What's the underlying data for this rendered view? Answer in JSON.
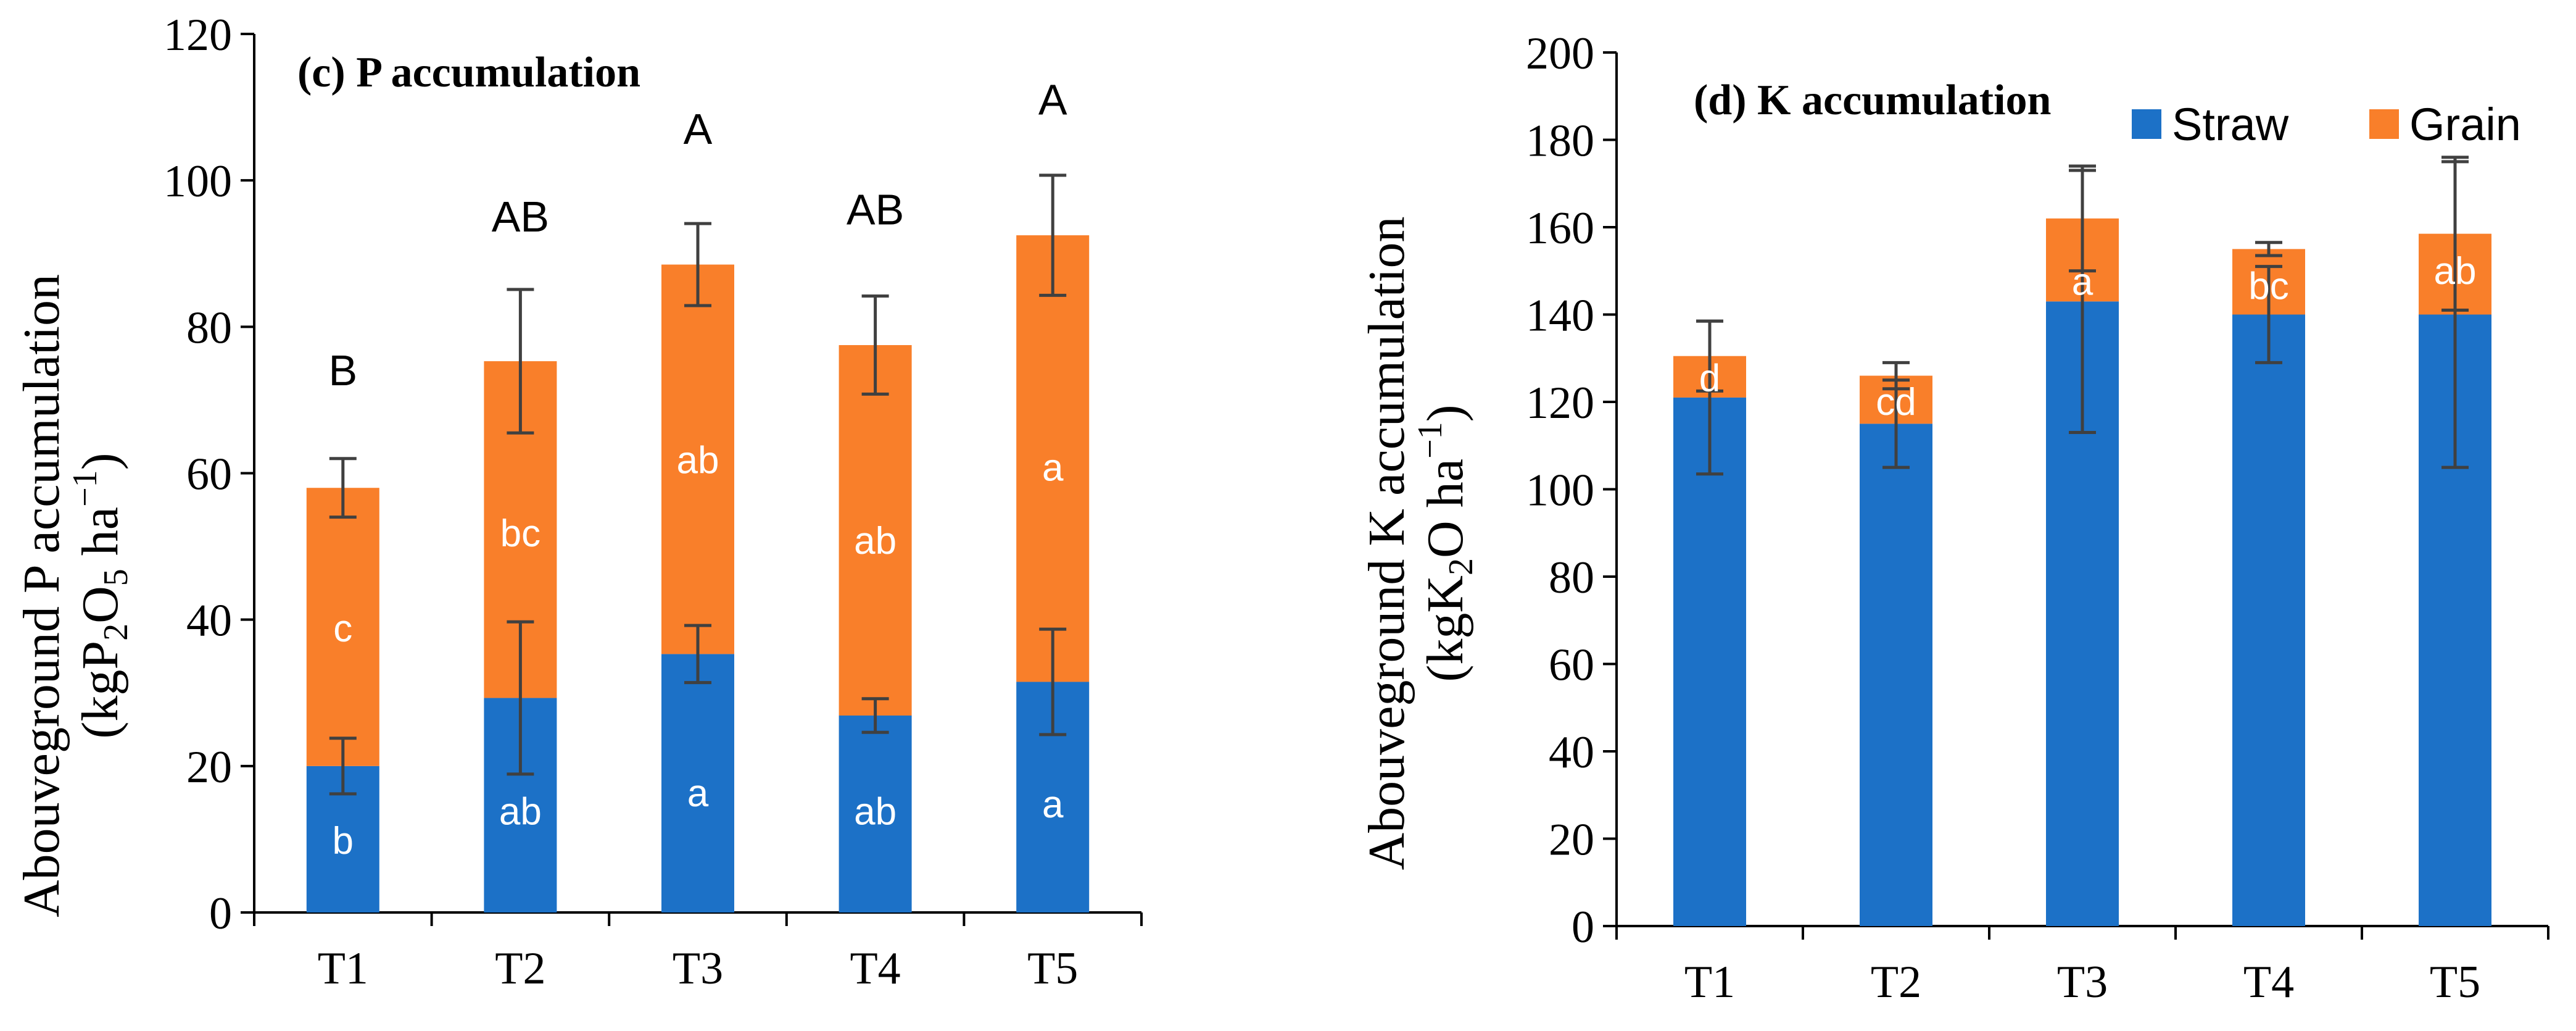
{
  "colors": {
    "straw": "#1C71C7",
    "grain": "#F97F2A",
    "axis": "#000000",
    "error": "#404040",
    "inbar_text": "#ffffff"
  },
  "chart_data": [
    {
      "type": "bar",
      "stacked": true,
      "title": "(c) P accumulation",
      "ylabel_line1": "Abouveground P accumulation",
      "ylabel_line2": {
        "pre": "(kgP",
        "sub1": "2",
        "mid": "O",
        "sub2": "5",
        "post": " ha",
        "sup": "−1",
        "close": ")"
      },
      "categories": [
        "T1",
        "T2",
        "T3",
        "T4",
        "T5"
      ],
      "ylim": [
        0,
        120
      ],
      "yticks": [
        0,
        20,
        40,
        60,
        80,
        100,
        120
      ],
      "series": [
        {
          "name": "Straw",
          "values": [
            20,
            29.3,
            35.3,
            26.9,
            31.5
          ],
          "errors": [
            3.8,
            10.4,
            3.9,
            2.3,
            7.2
          ],
          "letters": [
            "b",
            "ab",
            "a",
            "ab",
            "a"
          ]
        },
        {
          "name": "Grain",
          "values": [
            38,
            46,
            53.2,
            50.6,
            61
          ],
          "errors": [
            4,
            9.8,
            5.6,
            6.7,
            8.2
          ],
          "letters": [
            "c",
            "bc",
            "ab",
            "ab",
            "a"
          ]
        }
      ],
      "total_letters": [
        "B",
        "AB",
        "A",
        "AB",
        "A"
      ]
    },
    {
      "type": "bar",
      "stacked": true,
      "title": "(d) K accumulation",
      "ylabel_line1": "Abouveground K accumulation",
      "ylabel_line2": {
        "pre": "(kgK",
        "sub1": "2",
        "mid": "O",
        "sub2": "",
        "post": " ha",
        "sup": "−1",
        "close": ")"
      },
      "categories": [
        "T1",
        "T2",
        "T3",
        "T4",
        "T5"
      ],
      "ylim": [
        0,
        200
      ],
      "yticks": [
        0,
        20,
        40,
        60,
        80,
        100,
        120,
        140,
        160,
        180,
        200
      ],
      "legend": {
        "position": "top-right",
        "entries": [
          "Straw",
          "Grain"
        ]
      },
      "series": [
        {
          "name": "Straw",
          "values": [
            121,
            115,
            143,
            140,
            140
          ],
          "errors": [
            17.5,
            10,
            30,
            11,
            35
          ]
        },
        {
          "name": "Grain",
          "values": [
            9.5,
            11,
            19,
            15,
            18.5
          ],
          "errors": [
            8,
            3,
            12,
            1.5,
            17.5
          ],
          "letters": [
            "d",
            "cd",
            "a",
            "bc",
            "ab"
          ]
        }
      ]
    }
  ]
}
